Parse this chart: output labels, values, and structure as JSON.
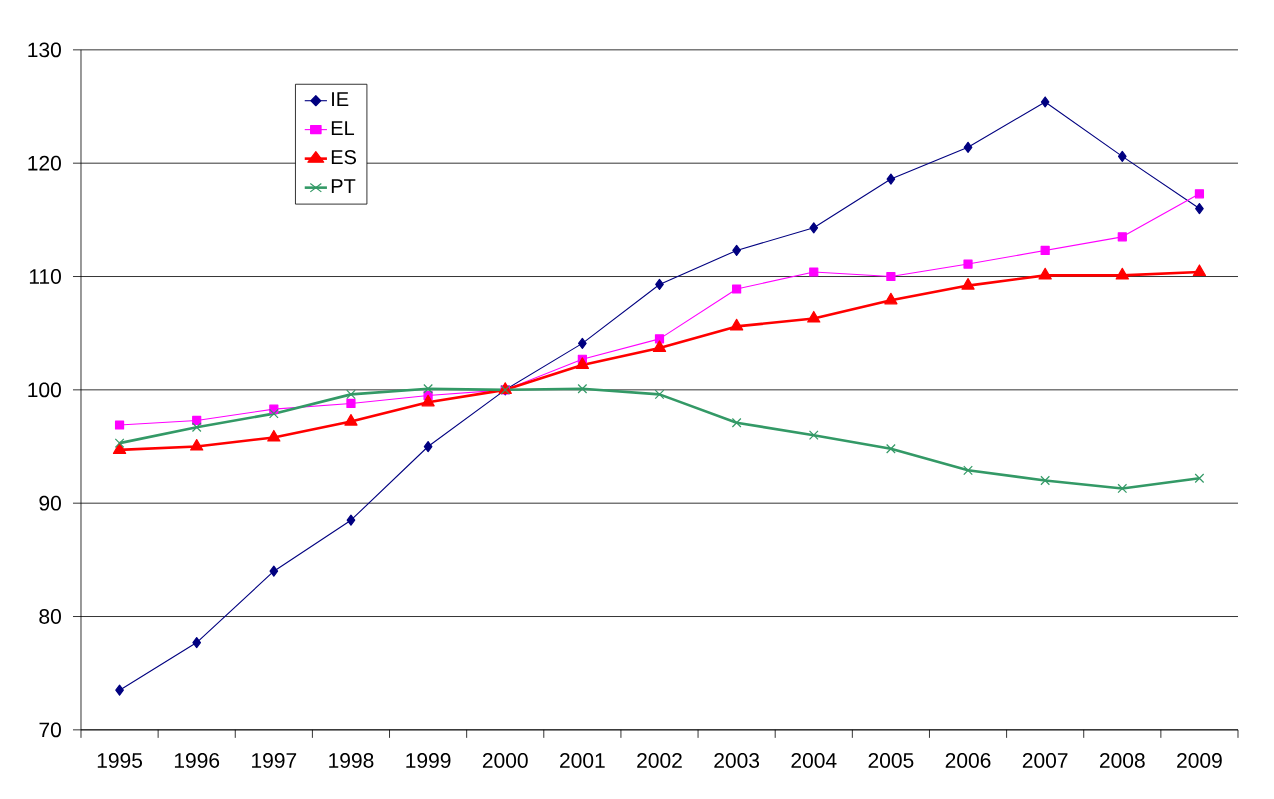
{
  "chart_data": {
    "type": "line",
    "categories": [
      "1995",
      "1996",
      "1997",
      "1998",
      "1999",
      "2000",
      "2001",
      "2002",
      "2003",
      "2004",
      "2005",
      "2006",
      "2007",
      "2008",
      "2009"
    ],
    "series": [
      {
        "name": "IE",
        "color": "#000080",
        "marker": "diamond",
        "values": [
          73.5,
          77.7,
          84.0,
          88.5,
          95.0,
          100,
          104.1,
          109.3,
          112.3,
          114.3,
          118.6,
          121.4,
          125.4,
          120.6,
          116.0
        ]
      },
      {
        "name": "EL",
        "color": "#ff00ff",
        "marker": "square",
        "values": [
          96.9,
          97.3,
          98.3,
          98.8,
          99.5,
          100,
          102.7,
          104.5,
          108.9,
          110.4,
          110.0,
          111.1,
          112.3,
          113.5,
          117.3
        ]
      },
      {
        "name": "ES",
        "color": "#ff0000",
        "marker": "triangle",
        "values": [
          94.7,
          95.0,
          95.8,
          97.2,
          98.9,
          100,
          102.2,
          103.7,
          105.6,
          106.3,
          107.9,
          109.2,
          110.1,
          110.1,
          110.4
        ]
      },
      {
        "name": "PT",
        "color": "#339966",
        "marker": "cross",
        "values": [
          95.3,
          96.7,
          97.9,
          99.6,
          100.1,
          100,
          100.1,
          99.6,
          97.1,
          96.0,
          94.8,
          92.9,
          92.0,
          91.3,
          92.2
        ]
      }
    ],
    "ylim": [
      70,
      130
    ],
    "yticks": [
      70,
      80,
      90,
      100,
      110,
      120,
      130
    ],
    "grid": "y",
    "legend": "top left",
    "line_style": "solid"
  }
}
